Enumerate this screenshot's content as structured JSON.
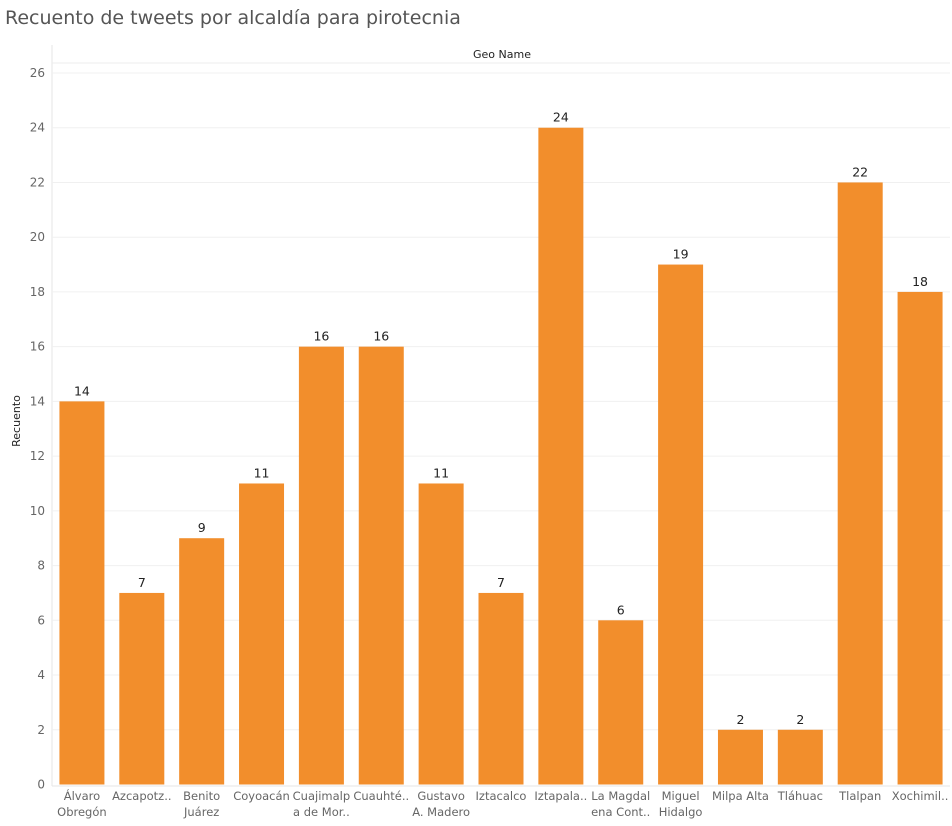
{
  "chart_data": {
    "type": "bar",
    "title": "Recuento de tweets por alcaldía para pirotecnia",
    "column_header": "Geo Name",
    "ylabel": "Recuento",
    "ylim": [
      0,
      26
    ],
    "yticks": [
      0,
      2,
      4,
      6,
      8,
      10,
      12,
      14,
      16,
      18,
      20,
      22,
      24,
      26
    ],
    "grid": true,
    "bar_color": "#f28e2c",
    "categories": [
      [
        "Álvaro",
        "Obregón"
      ],
      [
        "Azcapotz.."
      ],
      [
        "Benito",
        "Juárez"
      ],
      [
        "Coyoacán"
      ],
      [
        "Cuajimalp",
        "a de Mor.."
      ],
      [
        "Cuauhté.."
      ],
      [
        "Gustavo",
        "A. Madero"
      ],
      [
        "Iztacalco"
      ],
      [
        "Iztapala.."
      ],
      [
        "La Magdal",
        "ena Cont.."
      ],
      [
        "Miguel",
        "Hidalgo"
      ],
      [
        "Milpa Alta"
      ],
      [
        "Tláhuac"
      ],
      [
        "Tlalpan"
      ],
      [
        "Xochimil.."
      ]
    ],
    "values": [
      14,
      7,
      9,
      11,
      16,
      16,
      11,
      7,
      24,
      6,
      19,
      2,
      2,
      22,
      18
    ]
  }
}
